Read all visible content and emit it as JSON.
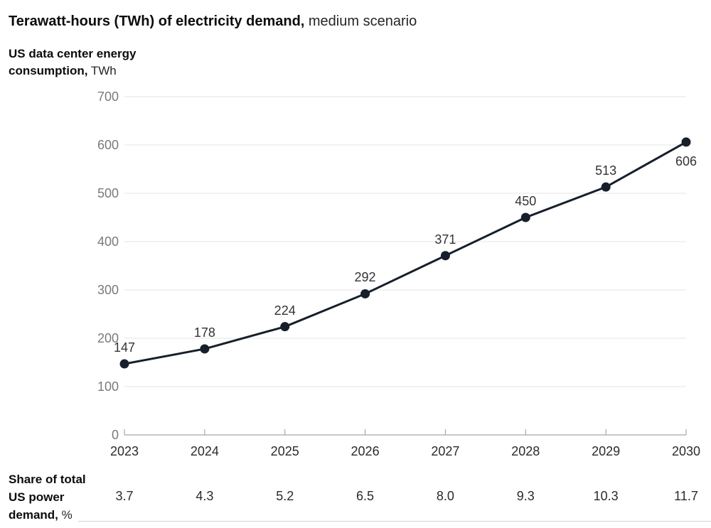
{
  "header": {
    "title_bold": "Terawatt-hours (TWh) of electricity demand,",
    "title_regular": " medium scenario",
    "subtitle_bold_line1": "US data center energy",
    "subtitle_bold_line2": "consumption,",
    "subtitle_unit": " TWh"
  },
  "row_label": {
    "line1": "Share of total",
    "line2": "US power",
    "line3_bold": "demand,",
    "line3_unit": " %"
  },
  "colors": {
    "line": "#161f2b",
    "marker": "#161f2b",
    "grid": "#e4e4e4",
    "axis": "#a8a8a8",
    "y_tick_label": "#7a7a7a",
    "x_tick_label": "#2b2b2b",
    "point_label": "#333333",
    "text": "#0c0c0c"
  },
  "chart_data": {
    "type": "line",
    "title": "Terawatt-hours (TWh) of electricity demand, medium scenario",
    "ylabel": "US data center energy consumption, TWh",
    "xlabel": "",
    "x": [
      2023,
      2024,
      2025,
      2026,
      2027,
      2028,
      2029,
      2030
    ],
    "series": [
      {
        "name": "US data center energy consumption, TWh",
        "values": [
          147,
          178,
          224,
          292,
          371,
          450,
          513,
          606
        ],
        "point_label_positions": [
          "above",
          "above",
          "above",
          "above",
          "above",
          "above",
          "above",
          "below"
        ]
      }
    ],
    "share_row": {
      "label": "Share of total US power demand, %",
      "values": [
        3.7,
        4.3,
        5.2,
        6.5,
        8.0,
        9.3,
        10.3,
        11.7
      ]
    },
    "ylim": [
      0,
      700
    ],
    "ytick_interval": 100,
    "yticks": [
      0,
      100,
      200,
      300,
      400,
      500,
      600,
      700
    ],
    "grid": true,
    "legend_position": "none"
  }
}
